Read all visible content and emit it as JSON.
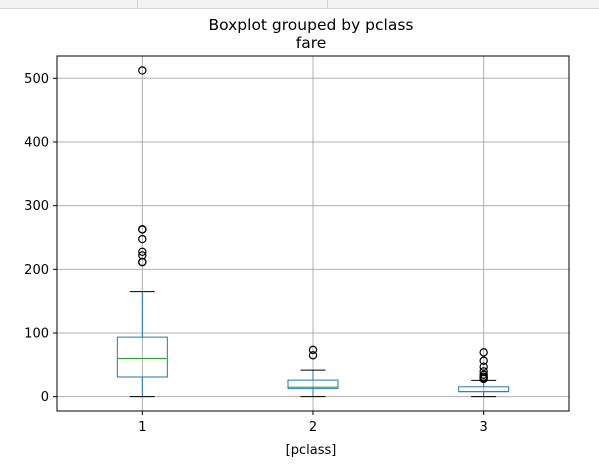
{
  "chart_data": {
    "type": "boxplot",
    "title": "Boxplot grouped by pclass",
    "subtitle": "fare",
    "xlabel": "[pclass]",
    "ylabel": "",
    "categories": [
      "1",
      "2",
      "3"
    ],
    "ylim": [
      -22.5,
      535
    ],
    "yticks": [
      0,
      100,
      200,
      300,
      400,
      500
    ],
    "ytick_labels": [
      "0",
      "100",
      "200",
      "300",
      "400",
      "500"
    ],
    "grid": true,
    "boxes": [
      {
        "category": "1",
        "whisker_low": 0,
        "q1": 30.9,
        "median": 60.0,
        "q3": 93.5,
        "whisker_high": 164.9,
        "outliers": [
          211.3,
          211.5,
          221.8,
          227.5,
          247.5,
          262.4,
          263.0,
          512.3
        ]
      },
      {
        "category": "2",
        "whisker_low": 0,
        "q1": 13.0,
        "median": 15.0,
        "q3": 26.0,
        "whisker_high": 41.6,
        "outliers": [
          65.0,
          73.5
        ]
      },
      {
        "category": "3",
        "whisker_low": 0,
        "q1": 7.75,
        "median": 8.05,
        "q3": 15.5,
        "whisker_high": 25.5,
        "outliers": [
          27.9,
          29.1,
          31.3,
          34.4,
          39.7,
          46.9,
          56.5,
          69.55
        ]
      }
    ],
    "colors": {
      "box": "#1f77b4",
      "median": "#2ca02c",
      "whisker": "#1f77b4",
      "cap": "#000000",
      "outlier": "#000000",
      "grid": "#b0b0b0"
    }
  }
}
